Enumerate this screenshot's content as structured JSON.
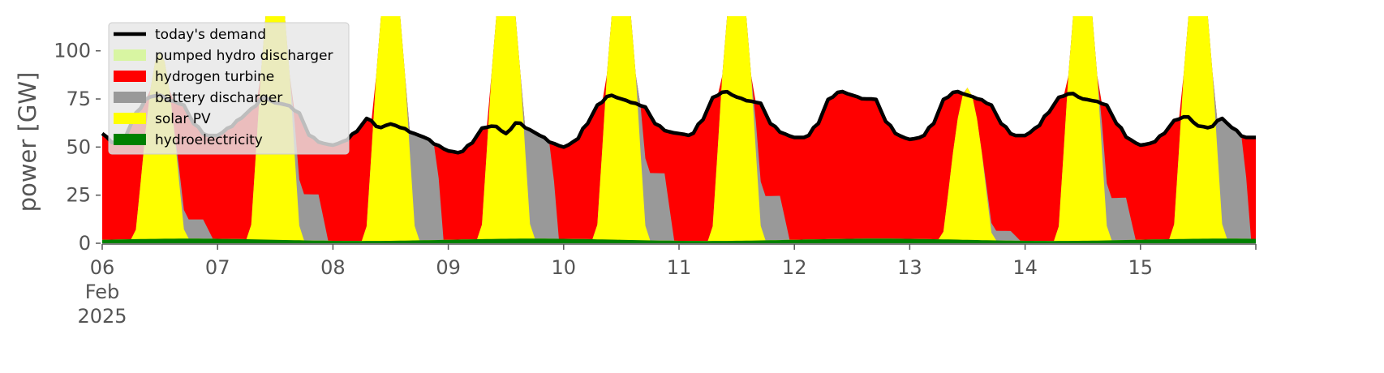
{
  "chart_data": {
    "type": "area",
    "ylabel": "power [GW]",
    "ylim": [
      0,
      118
    ],
    "x_days": [
      "06",
      "07",
      "08",
      "09",
      "10",
      "11",
      "12",
      "13",
      "14",
      "15"
    ],
    "x_first_extra": [
      "Feb",
      "2025"
    ],
    "yticks": [
      0,
      25,
      50,
      75,
      100
    ],
    "grid": false,
    "legend_position": "upper-left",
    "legend": [
      {
        "label": "today's demand",
        "color": "#000000",
        "kind": "line"
      },
      {
        "label": "pumped hydro discharger",
        "color": "#d8f5a2",
        "kind": "patch"
      },
      {
        "label": "hydrogen turbine",
        "color": "#ff0000",
        "kind": "patch"
      },
      {
        "label": "battery discharger",
        "color": "#999999",
        "kind": "patch"
      },
      {
        "label": "solar PV",
        "color": "#ffff00",
        "kind": "patch"
      },
      {
        "label": "hydroelectricity",
        "color": "#008000",
        "kind": "patch"
      }
    ],
    "series_colors": {
      "hydroelectricity": "#008000",
      "solar": "#ffff00",
      "battery": "#999999",
      "hydrogen": "#ff0000",
      "pumped": "#d8f5a2",
      "demand": "#000000"
    },
    "days": [
      {
        "solar_peak": 97,
        "battery_evening": 10,
        "demand": [
          57,
          52,
          56,
          68,
          76,
          77,
          74,
          72,
          62,
          56
        ]
      },
      {
        "solar_peak": 150,
        "battery_evening": 24,
        "demand": [
          56,
          60,
          65,
          70,
          76,
          73,
          72,
          68,
          56,
          52
        ]
      },
      {
        "solar_peak": 150,
        "battery_evening": 64,
        "demand": [
          51,
          53,
          58,
          65,
          60,
          62,
          60,
          57,
          55,
          51
        ]
      },
      {
        "solar_peak": 150,
        "battery_evening": 60,
        "demand": [
          48,
          47,
          52,
          60,
          61,
          57,
          63,
          59,
          56,
          52
        ]
      },
      {
        "solar_peak": 150,
        "battery_evening": 35,
        "demand": [
          50,
          53,
          62,
          72,
          77,
          75,
          73,
          71,
          62,
          58
        ]
      },
      {
        "solar_peak": 150,
        "battery_evening": 23,
        "demand": [
          57,
          56,
          64,
          76,
          79,
          76,
          74,
          73,
          62,
          57
        ]
      },
      {
        "solar_peak": 0,
        "battery_evening": 0,
        "demand": [
          55,
          55,
          62,
          75,
          79,
          77,
          75,
          75,
          63,
          56
        ]
      },
      {
        "solar_peak": 79,
        "battery_evening": 5,
        "demand": [
          54,
          55,
          62,
          75,
          79,
          77,
          75,
          72,
          62,
          56
        ]
      },
      {
        "solar_peak": 150,
        "battery_evening": 22,
        "demand": [
          56,
          60,
          68,
          76,
          78,
          75,
          74,
          72,
          62,
          54
        ]
      },
      {
        "solar_peak": 150,
        "battery_evening": 64,
        "demand": [
          51,
          52,
          57,
          64,
          66,
          61,
          60,
          65,
          60,
          55
        ]
      }
    ]
  }
}
